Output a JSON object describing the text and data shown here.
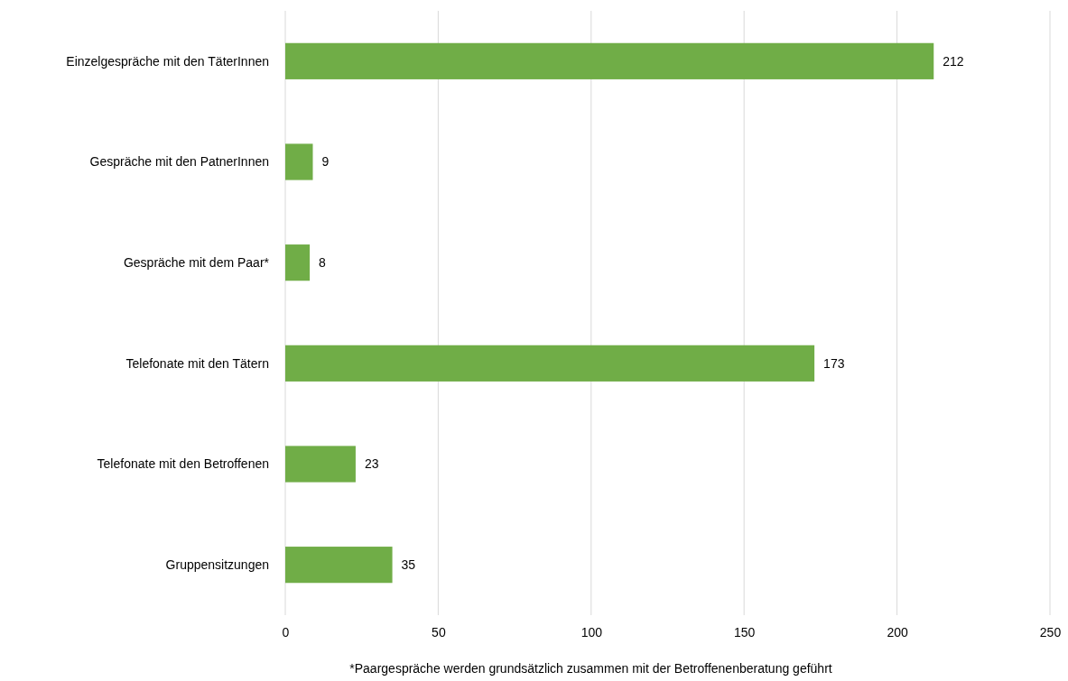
{
  "chart_data": {
    "type": "bar",
    "orientation": "horizontal",
    "categories": [
      "Einzelgespräche mit den TäterInnen",
      "Gespräche mit den PatnerInnen",
      "Gespräche mit dem Paar*",
      "Telefonate mit den Tätern",
      "Telefonate mit den Betroffenen",
      "Gruppensitzungen"
    ],
    "values": [
      212,
      9,
      8,
      173,
      23,
      35
    ],
    "color": "#70ad47",
    "xlim": [
      0,
      250
    ],
    "xticks": [
      0,
      50,
      100,
      150,
      200,
      250
    ],
    "grid": "x",
    "data_labels": true,
    "annotations": [
      "*Paargespräche werden grundsätzlich zusammen mit der Betroffenenberatung geführt"
    ]
  }
}
